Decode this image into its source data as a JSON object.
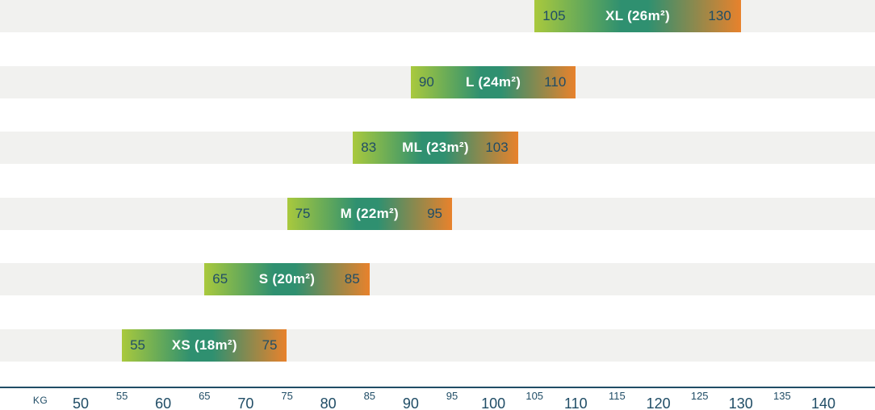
{
  "chart_data": {
    "type": "bar",
    "orientation": "horizontal-range",
    "title": "",
    "axis": {
      "label": "KG",
      "min": 50,
      "max": 140,
      "major_ticks": [
        50,
        60,
        70,
        80,
        90,
        100,
        110,
        120,
        130,
        140
      ],
      "minor_ticks": [
        55,
        65,
        75,
        85,
        95,
        105,
        115,
        125,
        135
      ]
    },
    "series": [
      {
        "size": "XL",
        "label": "XL (26m²)",
        "min": 105,
        "max": 130
      },
      {
        "size": "L",
        "label": "L (24m²)",
        "min": 90,
        "max": 110
      },
      {
        "size": "ML",
        "label": "ML (23m²)",
        "min": 83,
        "max": 103
      },
      {
        "size": "M",
        "label": "M (22m²)",
        "min": 75,
        "max": 95
      },
      {
        "size": "S",
        "label": "S (20m²)",
        "min": 65,
        "max": 85
      },
      {
        "size": "XS",
        "label": "XS (18m²)",
        "min": 55,
        "max": 75
      }
    ],
    "colors": {
      "gradient_start": "#a9c93d",
      "gradient_mid": "#2f9070",
      "gradient_end": "#e8822c",
      "row_background": "#f1f1ef",
      "value_text": "#204d66",
      "bar_label_text": "#ffffff",
      "axis_line": "#204d66",
      "axis_text": "#204d66"
    }
  }
}
